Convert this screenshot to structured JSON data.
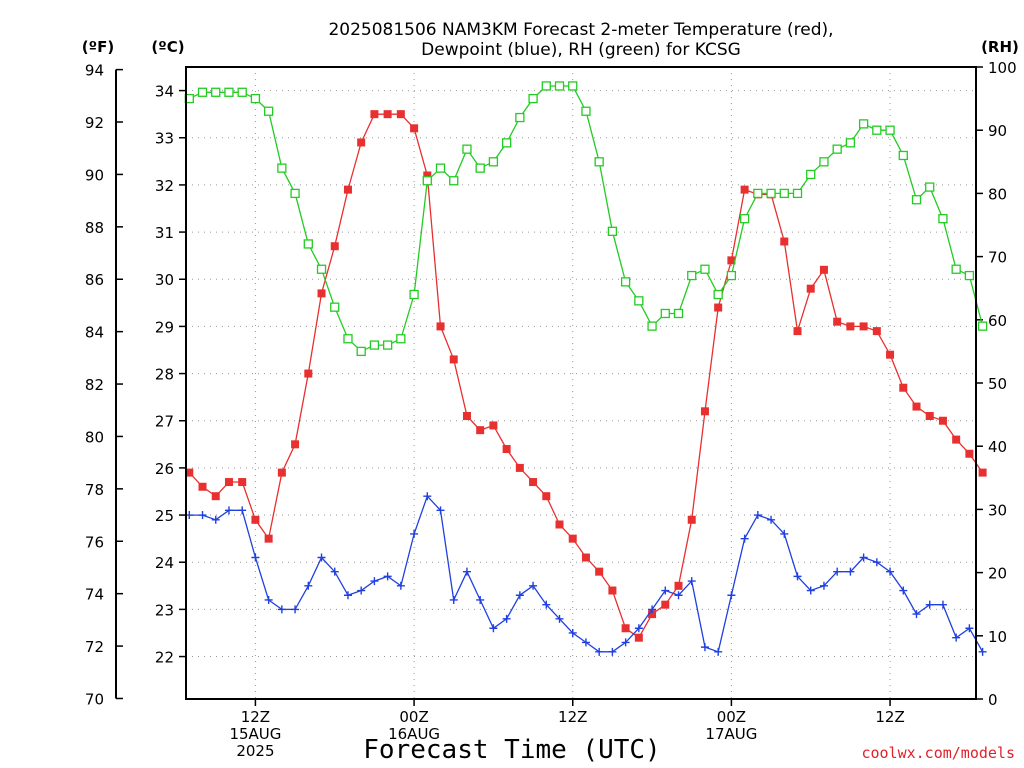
{
  "chart_data": {
    "type": "line",
    "title_line1": "2025081506 NAM3KM Forecast 2-meter Temperature (red),",
    "title_line2": "Dewpoint (blue), RH (green) for KCSG",
    "xlabel": "Forecast Time (UTC)",
    "credit": "coolwx.com/models",
    "unit_f": "(ºF)",
    "unit_c": "(ºC)",
    "unit_rh": "(RH)",
    "x_unit": "hours after 2025-08-15 00Z",
    "xlim": [
      6.75,
      66.5
    ],
    "ylim_c": [
      21.1,
      34.5
    ],
    "ylim_rh": [
      0,
      100
    ],
    "f_ticks": [
      "70",
      "72",
      "74",
      "76",
      "78",
      "80",
      "82",
      "84",
      "86",
      "88",
      "90",
      "92",
      "94"
    ],
    "c_ticks": [
      "22",
      "23",
      "24",
      "25",
      "26",
      "27",
      "28",
      "29",
      "30",
      "31",
      "32",
      "33",
      "34"
    ],
    "rh_ticks": [
      "0",
      "10",
      "20",
      "30",
      "40",
      "50",
      "60",
      "70",
      "80",
      "90",
      "100"
    ],
    "x_ticks": [
      {
        "hour": 12,
        "line1": "12Z",
        "line2": "15AUG",
        "line3": "2025"
      },
      {
        "hour": 24,
        "line1": "00Z",
        "line2": "16AUG",
        "line3": ""
      },
      {
        "hour": 36,
        "line1": "12Z",
        "line2": "",
        "line3": ""
      },
      {
        "hour": 48,
        "line1": "00Z",
        "line2": "17AUG",
        "line3": ""
      },
      {
        "hour": 60,
        "line1": "12Z",
        "line2": "",
        "line3": ""
      }
    ],
    "grid": true,
    "series": [
      {
        "name": "Temperature",
        "color": "#e83030",
        "marker": "filled-square",
        "axis": "c",
        "values": [
          25.9,
          25.6,
          25.4,
          25.7,
          25.7,
          24.9,
          24.5,
          25.9,
          26.5,
          28.0,
          29.7,
          30.7,
          31.9,
          32.9,
          33.5,
          33.5,
          33.5,
          33.2,
          32.2,
          29.0,
          28.3,
          27.1,
          26.8,
          26.9,
          26.4,
          26.0,
          25.7,
          25.4,
          24.8,
          24.5,
          24.1,
          23.8,
          23.4,
          22.6,
          22.4,
          22.9,
          23.1,
          23.5,
          24.9,
          27.2,
          29.4,
          30.4,
          31.9,
          31.8,
          31.8,
          30.8,
          28.9,
          29.8,
          30.2,
          29.1,
          29.0,
          29.0,
          28.9,
          28.4,
          27.7,
          27.3,
          27.1,
          27.0,
          26.6,
          26.3,
          25.9
        ]
      },
      {
        "name": "Dewpoint",
        "color": "#2040e0",
        "marker": "plus",
        "axis": "c",
        "values": [
          25.0,
          25.0,
          24.9,
          25.1,
          25.1,
          24.1,
          23.2,
          23.0,
          23.0,
          23.5,
          24.1,
          23.8,
          23.3,
          23.4,
          23.6,
          23.7,
          23.5,
          24.6,
          25.4,
          25.1,
          23.2,
          23.8,
          23.2,
          22.6,
          22.8,
          23.3,
          23.5,
          23.1,
          22.8,
          22.5,
          22.3,
          22.1,
          22.1,
          22.3,
          22.6,
          23.0,
          23.4,
          23.3,
          23.6,
          22.2,
          22.1,
          23.3,
          24.5,
          25.0,
          24.9,
          24.6,
          23.7,
          23.4,
          23.5,
          23.8,
          23.8,
          24.1,
          24.0,
          23.8,
          23.4,
          22.9,
          23.1,
          23.1,
          22.4,
          22.6,
          22.1
        ]
      },
      {
        "name": "RH",
        "color": "#22cc22",
        "marker": "open-square",
        "axis": "rh",
        "values": [
          95,
          96,
          96,
          96,
          96,
          95,
          93,
          84,
          80,
          72,
          68,
          62,
          57,
          55,
          56,
          56,
          57,
          64,
          82,
          84,
          82,
          87,
          84,
          85,
          88,
          92,
          95,
          97,
          97,
          97,
          93,
          85,
          74,
          66,
          63,
          59,
          61,
          61,
          67,
          68,
          64,
          67,
          76,
          80,
          80,
          80,
          80,
          83,
          85,
          87,
          88,
          91,
          90,
          90,
          86,
          79,
          81,
          76,
          68,
          67,
          59
        ]
      }
    ]
  }
}
